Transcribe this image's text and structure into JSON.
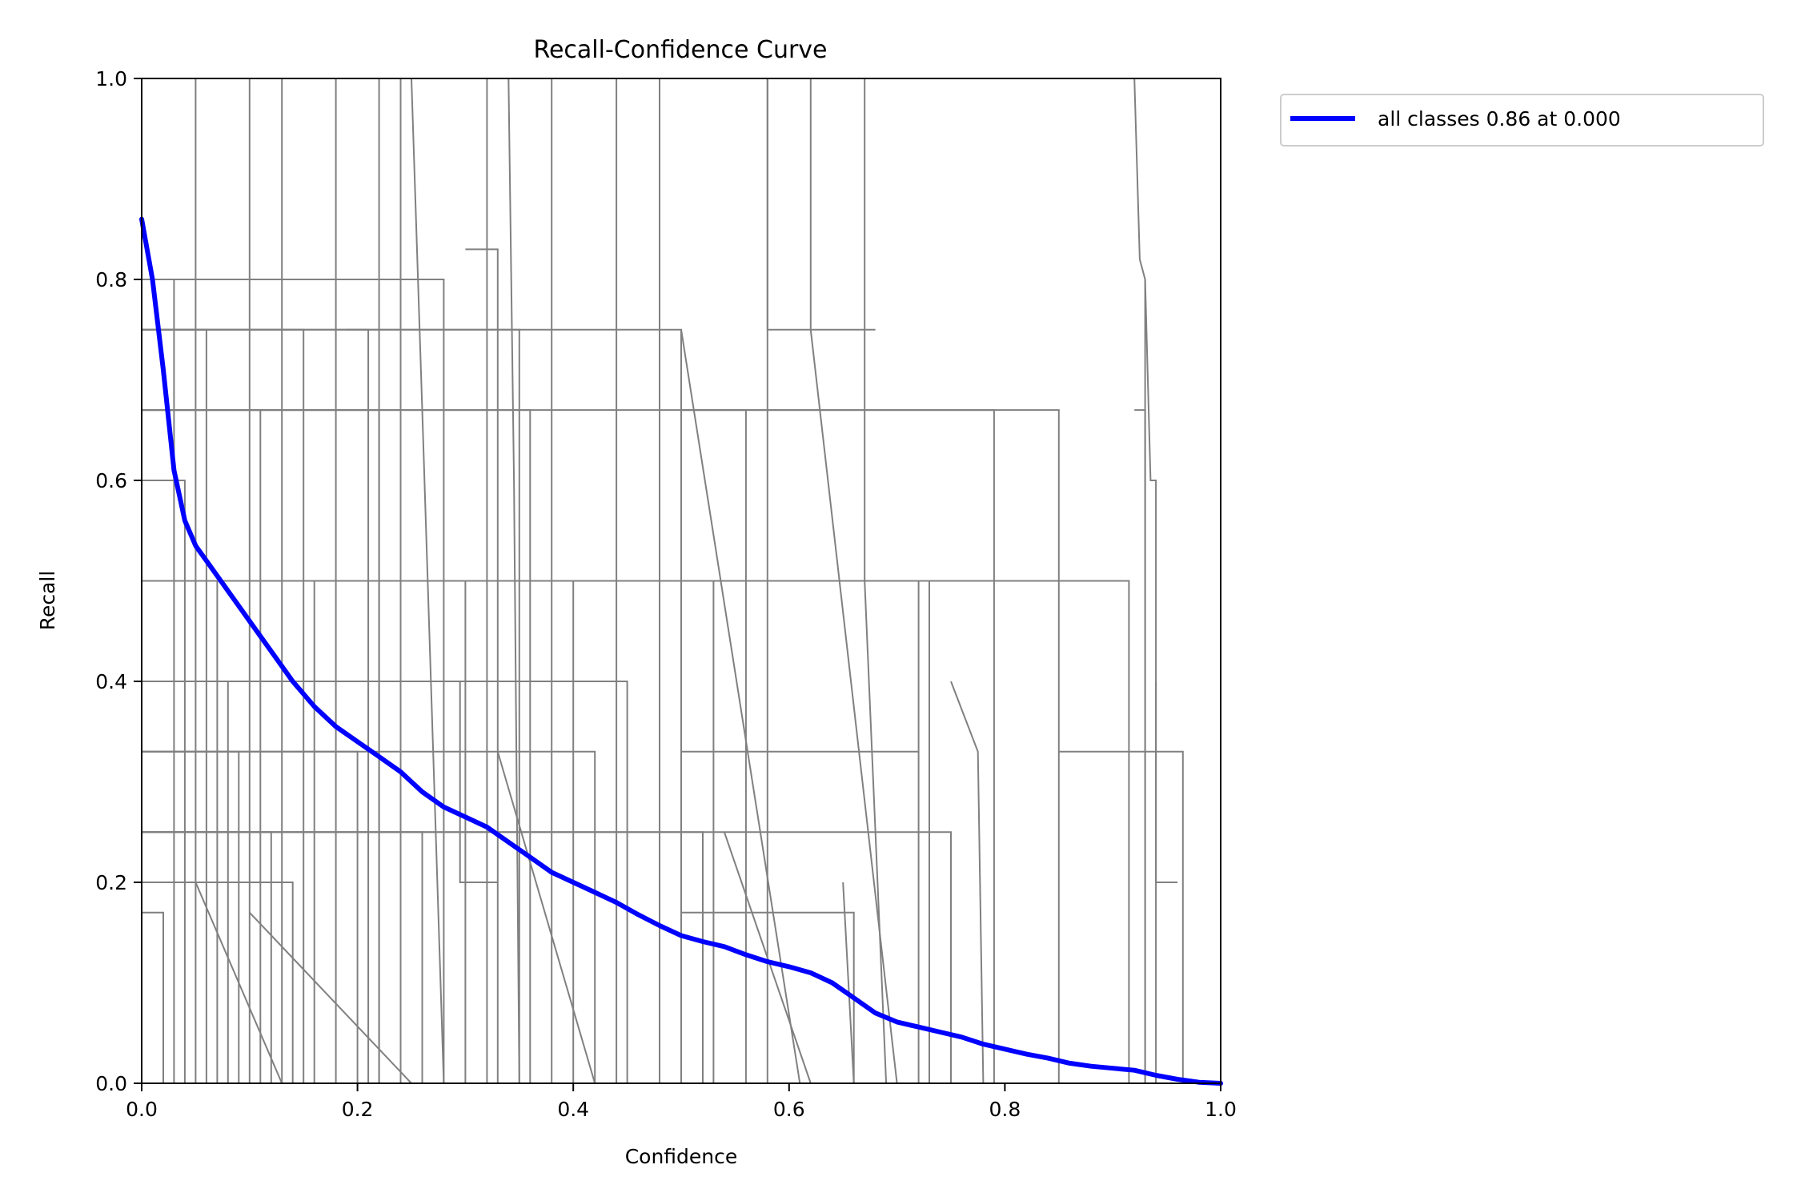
{
  "chart_data": {
    "type": "line",
    "title": "Recall-Confidence Curve",
    "xlabel": "Confidence",
    "ylabel": "Recall",
    "xlim": [
      0,
      1
    ],
    "ylim": [
      0,
      1
    ],
    "xticks": [
      "0.0",
      "0.2",
      "0.4",
      "0.6",
      "0.8",
      "1.0"
    ],
    "yticks": [
      "0.0",
      "0.2",
      "0.4",
      "0.6",
      "0.8",
      "1.0"
    ],
    "grid": false,
    "legend": {
      "placement": "outside-top-right",
      "entries": [
        "all classes 0.86 at 0.000"
      ]
    },
    "colors": {
      "per_class": "#808080",
      "all_classes": "#0000ff"
    },
    "series": [
      {
        "name": "all classes 0.86 at 0.000",
        "color": "#0000ff",
        "x": [
          0.0,
          0.01,
          0.02,
          0.03,
          0.04,
          0.05,
          0.06,
          0.08,
          0.1,
          0.12,
          0.14,
          0.16,
          0.18,
          0.2,
          0.22,
          0.24,
          0.26,
          0.28,
          0.3,
          0.32,
          0.34,
          0.36,
          0.38,
          0.4,
          0.42,
          0.44,
          0.46,
          0.48,
          0.5,
          0.52,
          0.54,
          0.56,
          0.58,
          0.6,
          0.62,
          0.64,
          0.66,
          0.68,
          0.7,
          0.72,
          0.74,
          0.76,
          0.78,
          0.8,
          0.82,
          0.84,
          0.86,
          0.88,
          0.9,
          0.92,
          0.94,
          0.96,
          0.98,
          1.0
        ],
        "y": [
          0.86,
          0.8,
          0.71,
          0.61,
          0.56,
          0.535,
          0.52,
          0.49,
          0.46,
          0.43,
          0.4,
          0.375,
          0.355,
          0.34,
          0.325,
          0.31,
          0.29,
          0.275,
          0.265,
          0.255,
          0.24,
          0.225,
          0.21,
          0.2,
          0.19,
          0.18,
          0.168,
          0.157,
          0.147,
          0.141,
          0.136,
          0.128,
          0.121,
          0.116,
          0.11,
          0.1,
          0.085,
          0.07,
          0.061,
          0.056,
          0.051,
          0.046,
          0.039,
          0.034,
          0.029,
          0.025,
          0.02,
          0.017,
          0.015,
          0.013,
          0.008,
          0.004,
          0.001,
          0.0
        ]
      }
    ],
    "background_series": [
      {
        "x": [
          0.0,
          0.05,
          0.05,
          0.08
        ],
        "y": [
          1.0,
          1.0,
          0.0,
          0.0
        ]
      },
      {
        "x": [
          0.0,
          0.03,
          0.03,
          0.06
        ],
        "y": [
          0.8,
          0.8,
          0.0,
          0.0
        ]
      },
      {
        "x": [
          0.0,
          0.04,
          0.04,
          0.07
        ],
        "y": [
          0.6,
          0.6,
          0.0,
          0.0
        ]
      },
      {
        "x": [
          0.0,
          0.06,
          0.06,
          0.09
        ],
        "y": [
          0.75,
          0.75,
          0.0,
          0.0
        ]
      },
      {
        "x": [
          0.0,
          0.07,
          0.07,
          0.1
        ],
        "y": [
          0.5,
          0.5,
          0.0,
          0.0
        ]
      },
      {
        "x": [
          0.0,
          0.08,
          0.08,
          0.11
        ],
        "y": [
          0.4,
          0.4,
          0.0,
          0.0
        ]
      },
      {
        "x": [
          0.0,
          0.09,
          0.09,
          0.12
        ],
        "y": [
          0.33,
          0.33,
          0.0,
          0.0
        ]
      },
      {
        "x": [
          0.0,
          0.1,
          0.1,
          0.13
        ],
        "y": [
          1.0,
          1.0,
          0.0,
          0.0
        ]
      },
      {
        "x": [
          0.0,
          0.11,
          0.11,
          0.14
        ],
        "y": [
          0.67,
          0.67,
          0.0,
          0.0
        ]
      },
      {
        "x": [
          0.0,
          0.12,
          0.12,
          0.15
        ],
        "y": [
          0.25,
          0.25,
          0.0,
          0.0
        ]
      },
      {
        "x": [
          0.0,
          0.13,
          0.13,
          0.16
        ],
        "y": [
          1.0,
          1.0,
          0.0,
          0.0
        ]
      },
      {
        "x": [
          0.0,
          0.14,
          0.14,
          0.17
        ],
        "y": [
          0.2,
          0.2,
          0.0,
          0.0
        ]
      },
      {
        "x": [
          0.0,
          0.15,
          0.15,
          0.18
        ],
        "y": [
          0.75,
          0.75,
          0.0,
          0.0
        ]
      },
      {
        "x": [
          0.0,
          0.16,
          0.16,
          0.19
        ],
        "y": [
          0.5,
          0.5,
          0.0,
          0.0
        ]
      },
      {
        "x": [
          0.0,
          0.02,
          0.02,
          0.05
        ],
        "y": [
          0.17,
          0.17,
          0.0,
          0.0
        ]
      },
      {
        "x": [
          0.0,
          0.18,
          0.18,
          0.21
        ],
        "y": [
          1.0,
          1.0,
          0.0,
          0.0
        ]
      },
      {
        "x": [
          0.0,
          0.2,
          0.2,
          0.23
        ],
        "y": [
          0.33,
          0.33,
          0.0,
          0.0
        ]
      },
      {
        "x": [
          0.0,
          0.22,
          0.22,
          0.25
        ],
        "y": [
          0.67,
          0.67,
          0.0,
          0.0
        ]
      },
      {
        "x": [
          0.0,
          0.24,
          0.24,
          0.27
        ],
        "y": [
          1.0,
          1.0,
          0.0,
          0.0
        ]
      },
      {
        "x": [
          0.0,
          0.26,
          0.26,
          0.29
        ],
        "y": [
          0.25,
          0.25,
          0.0,
          0.0
        ]
      },
      {
        "x": [
          0.0,
          0.28,
          0.28,
          0.31
        ],
        "y": [
          0.8,
          0.8,
          0.0,
          0.0
        ]
      },
      {
        "x": [
          0.0,
          0.3,
          0.3,
          0.33
        ],
        "y": [
          0.5,
          0.5,
          0.0,
          0.0
        ]
      },
      {
        "x": [
          0.0,
          0.295,
          0.295,
          0.33
        ],
        "y": [
          0.4,
          0.4,
          0.2,
          0.2
        ]
      },
      {
        "x": [
          0.33,
          0.42
        ],
        "y": [
          0.33,
          0.0
        ]
      },
      {
        "x": [
          0.0,
          0.32,
          0.32,
          0.34
        ],
        "y": [
          1.0,
          1.0,
          0.0,
          0.0
        ]
      },
      {
        "x": [
          0.0,
          0.35,
          0.35,
          0.38
        ],
        "y": [
          0.75,
          0.75,
          0.0,
          0.0
        ]
      },
      {
        "x": [
          0.0,
          0.36,
          0.36,
          0.39
        ],
        "y": [
          0.67,
          0.67,
          0.0,
          0.0
        ]
      },
      {
        "x": [
          0.0,
          0.38,
          0.38,
          0.4
        ],
        "y": [
          1.0,
          1.0,
          0.0,
          0.0
        ]
      },
      {
        "x": [
          0.0,
          0.4,
          0.4,
          0.42
        ],
        "y": [
          0.5,
          0.5,
          0.0,
          0.0
        ]
      },
      {
        "x": [
          0.0,
          0.42,
          0.42,
          0.45
        ],
        "y": [
          0.33,
          0.33,
          0.0,
          0.0
        ]
      },
      {
        "x": [
          0.0,
          0.44,
          0.44,
          0.47
        ],
        "y": [
          1.0,
          1.0,
          0.0,
          0.0
        ]
      },
      {
        "x": [
          0.0,
          0.45,
          0.45,
          0.48
        ],
        "y": [
          0.4,
          0.4,
          0.0,
          0.0
        ]
      },
      {
        "x": [
          0.0,
          0.48,
          0.48,
          0.5
        ],
        "y": [
          1.0,
          1.0,
          0.0,
          0.0
        ]
      },
      {
        "x": [
          0.0,
          0.5,
          0.5,
          0.52
        ],
        "y": [
          0.75,
          0.75,
          0.0,
          0.0
        ]
      },
      {
        "x": [
          0.0,
          0.52,
          0.52,
          0.55
        ],
        "y": [
          0.25,
          0.25,
          0.0,
          0.0
        ]
      },
      {
        "x": [
          0.0,
          0.53,
          0.53,
          0.54
        ],
        "y": [
          0.5,
          0.5,
          0.0,
          0.0
        ]
      },
      {
        "x": [
          0.0,
          0.56,
          0.56,
          0.59
        ],
        "y": [
          0.67,
          0.67,
          0.0,
          0.0
        ]
      },
      {
        "x": [
          0.0,
          0.58,
          0.58,
          0.61
        ],
        "y": [
          1.0,
          1.0,
          0.0,
          0.0
        ]
      },
      {
        "x": [
          0.3,
          0.33,
          0.33,
          0.44
        ],
        "y": [
          0.83,
          0.83,
          0.0,
          0.0
        ]
      },
      {
        "x": [
          0.5,
          0.61
        ],
        "y": [
          0.75,
          0.0
        ]
      },
      {
        "x": [
          0.54,
          0.58,
          0.58,
          0.68
        ],
        "y": [
          1.0,
          1.0,
          0.75,
          0.75
        ]
      },
      {
        "x": [
          0.54,
          0.62
        ],
        "y": [
          0.25,
          0.0
        ]
      },
      {
        "x": [
          0.62,
          0.62,
          0.62,
          0.7
        ],
        "y": [
          1.0,
          0.75,
          0.75,
          0.0
        ]
      },
      {
        "x": [
          0.63,
          0.63,
          0.73,
          0.73
        ],
        "y": [
          0.5,
          0.5,
          0.5,
          0.0
        ]
      },
      {
        "x": [
          0.5,
          0.72
        ],
        "y": [
          0.33,
          0.33
        ]
      },
      {
        "x": [
          0.0,
          0.75,
          0.75,
          0.78
        ],
        "y": [
          0.25,
          0.25,
          0.0,
          0.0
        ]
      },
      {
        "x": [
          0.5,
          0.79,
          0.79,
          0.8
        ],
        "y": [
          0.67,
          0.67,
          0.0,
          0.0
        ]
      },
      {
        "x": [
          0.5,
          0.85,
          0.85,
          0.88
        ],
        "y": [
          0.67,
          0.67,
          0.0,
          0.0
        ]
      },
      {
        "x": [
          0.0,
          0.915,
          0.915,
          0.93
        ],
        "y": [
          0.5,
          0.5,
          0.0,
          0.0
        ]
      },
      {
        "x": [
          0.85,
          0.965,
          0.965,
          0.97
        ],
        "y": [
          0.33,
          0.33,
          0.0,
          0.0
        ]
      },
      {
        "x": [
          0.92,
          0.93,
          0.93,
          0.95
        ],
        "y": [
          0.67,
          0.67,
          0.0,
          0.0
        ]
      },
      {
        "x": [
          0.92,
          0.925,
          0.93,
          0.93,
          0.96
        ],
        "y": [
          1.0,
          0.82,
          0.8,
          0.0,
          0.0
        ]
      },
      {
        "x": [
          0.93,
          0.935,
          0.94,
          0.94,
          0.96
        ],
        "y": [
          0.8,
          0.6,
          0.6,
          0.2,
          0.2
        ]
      },
      {
        "x": [
          0.94,
          0.94
        ],
        "y": [
          0.4,
          0.0
        ]
      },
      {
        "x": [
          0.71,
          0.72,
          0.72,
          0.74
        ],
        "y": [
          0.5,
          0.5,
          0.0,
          0.0
        ]
      },
      {
        "x": [
          0.75,
          0.775,
          0.775,
          0.78
        ],
        "y": [
          0.4,
          0.33,
          0.33,
          0.0
        ]
      },
      {
        "x": [
          0.67,
          0.67,
          0.69
        ],
        "y": [
          1.0,
          0.5,
          0.0
        ]
      },
      {
        "x": [
          0.65,
          0.65,
          0.66
        ],
        "y": [
          0.2,
          0.2,
          0.0
        ]
      },
      {
        "x": [
          0.5,
          0.66,
          0.66,
          0.68
        ],
        "y": [
          0.17,
          0.17,
          0.0,
          0.0
        ]
      },
      {
        "x": [
          0.2,
          0.22,
          0.22,
          0.24
        ],
        "y": [
          1.0,
          1.0,
          0.0,
          0.0
        ]
      },
      {
        "x": [
          0.25,
          0.26,
          0.26,
          0.28
        ],
        "y": [
          1.0,
          0.67,
          0.67,
          0.0
        ]
      },
      {
        "x": [
          0.34,
          0.345,
          0.345,
          0.35
        ],
        "y": [
          1.0,
          0.6,
          0.6,
          0.0
        ]
      },
      {
        "x": [
          0.19,
          0.21,
          0.21,
          0.23
        ],
        "y": [
          0.75,
          0.75,
          0.0,
          0.0
        ]
      },
      {
        "x": [
          0.1,
          0.25
        ],
        "y": [
          0.17,
          0.0
        ]
      },
      {
        "x": [
          0.05,
          0.13
        ],
        "y": [
          0.2,
          0.0
        ]
      }
    ]
  }
}
